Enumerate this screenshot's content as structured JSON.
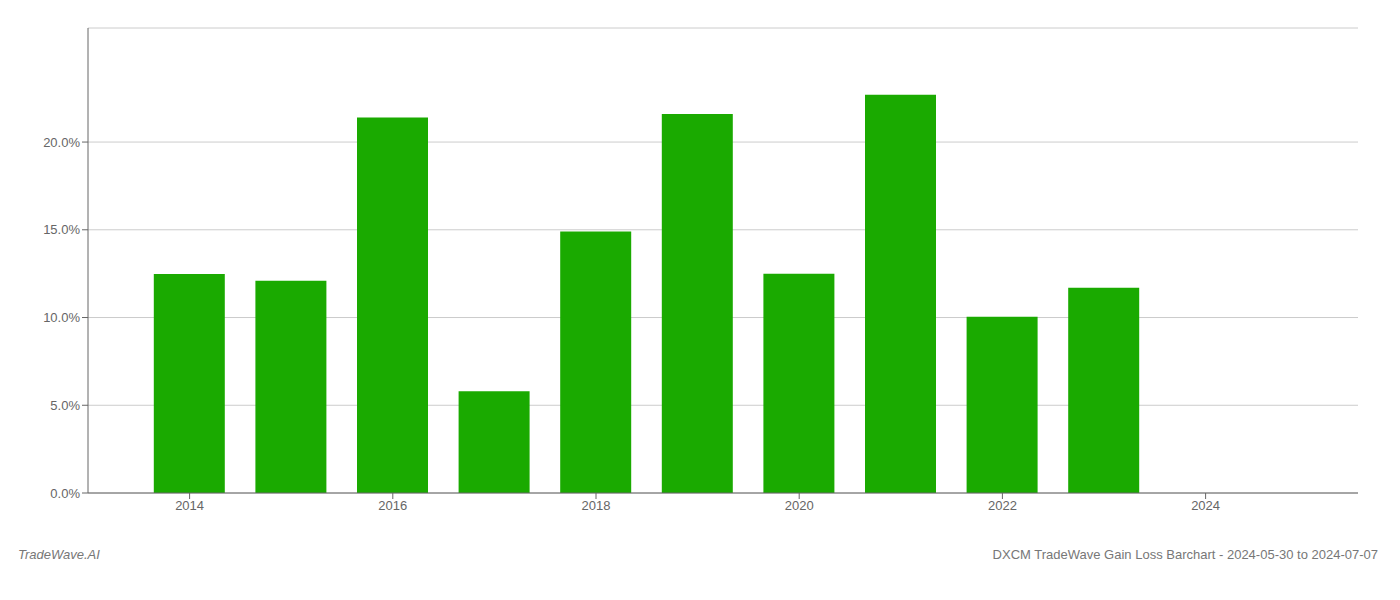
{
  "chart_data": {
    "type": "bar",
    "x": [
      2014,
      2015,
      2016,
      2017,
      2018,
      2019,
      2020,
      2021,
      2022,
      2023
    ],
    "values": [
      0.1248,
      0.121,
      0.214,
      0.058,
      0.149,
      0.216,
      0.125,
      0.227,
      0.1005,
      0.117
    ],
    "color": "#1aaa00",
    "xlim": [
      2013.0,
      2025.5
    ],
    "xticks": [
      2014,
      2016,
      2018,
      2020,
      2022,
      2024
    ],
    "ylim": [
      0,
      0.265
    ],
    "yticks": [
      {
        "value": 0.0,
        "label": "0.0%"
      },
      {
        "value": 0.05,
        "label": "5.0%"
      },
      {
        "value": 0.1,
        "label": "10.0%"
      },
      {
        "value": 0.15,
        "label": "15.0%"
      },
      {
        "value": 0.2,
        "label": "20.0%"
      }
    ],
    "grid": true,
    "annotations": [
      "TradeWave.AI",
      "DXCM TradeWave Gain Loss Barchart - 2024-05-30 to 2024-07-07"
    ]
  }
}
